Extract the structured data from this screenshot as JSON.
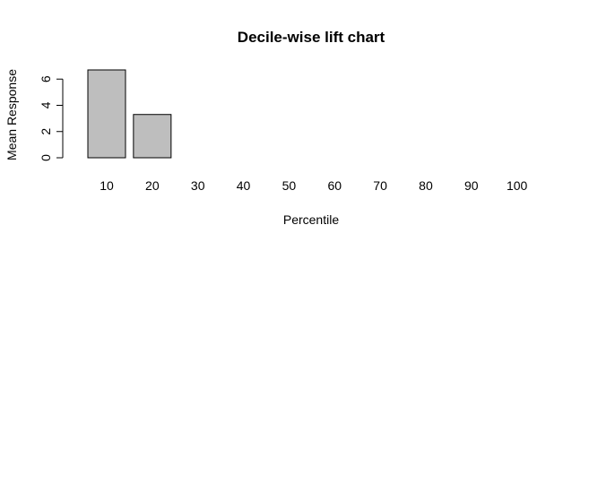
{
  "chart_data": {
    "type": "bar",
    "title": "Decile-wise lift chart",
    "xlabel": "Percentile",
    "ylabel": "Mean Response",
    "categories": [
      "10",
      "20",
      "30",
      "40",
      "50",
      "60",
      "70",
      "80",
      "90",
      "100"
    ],
    "values": [
      6.7,
      3.3,
      0,
      0,
      0,
      0,
      0,
      0,
      0,
      0
    ],
    "ylim": [
      0,
      6.7
    ],
    "yticks": [
      0,
      2,
      4,
      6
    ],
    "grid": false,
    "bar_color": "#bebebe",
    "bar_edge_color": "#000000"
  }
}
